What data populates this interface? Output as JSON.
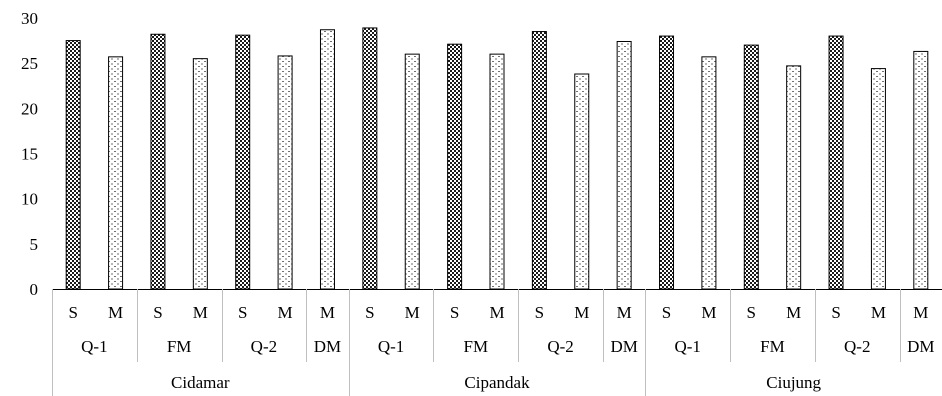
{
  "chart_data": {
    "type": "bar",
    "title": "",
    "xlabel": "",
    "ylabel": "",
    "ylim": [
      0,
      30
    ],
    "yticks": [
      0,
      5,
      10,
      15,
      20,
      25,
      30
    ],
    "grid": false,
    "legend": "none",
    "hatch_colors": {
      "S": "#1a1a1a",
      "M": "#707070"
    },
    "bars": [
      {
        "label": "S",
        "value": 27.5
      },
      {
        "label": "M",
        "value": 25.7
      },
      {
        "label": "S",
        "value": 28.2
      },
      {
        "label": "M",
        "value": 25.5
      },
      {
        "label": "S",
        "value": 28.1
      },
      {
        "label": "M",
        "value": 25.8
      },
      {
        "label": "M",
        "value": 28.7
      },
      {
        "label": "S",
        "value": 28.9
      },
      {
        "label": "M",
        "value": 26.0
      },
      {
        "label": "S",
        "value": 27.1
      },
      {
        "label": "M",
        "value": 26.0
      },
      {
        "label": "S",
        "value": 28.5
      },
      {
        "label": "M",
        "value": 23.8
      },
      {
        "label": "M",
        "value": 27.4
      },
      {
        "label": "S",
        "value": 28.0
      },
      {
        "label": "M",
        "value": 25.7
      },
      {
        "label": "S",
        "value": 27.0
      },
      {
        "label": "M",
        "value": 24.7
      },
      {
        "label": "S",
        "value": 28.0
      },
      {
        "label": "M",
        "value": 24.4
      },
      {
        "label": "M",
        "value": 26.3
      }
    ],
    "subgroups": [
      {
        "label": "Q-1",
        "size": 2
      },
      {
        "label": "FM",
        "size": 2
      },
      {
        "label": "Q-2",
        "size": 2
      },
      {
        "label": "DM",
        "size": 1
      },
      {
        "label": "Q-1",
        "size": 2
      },
      {
        "label": "FM",
        "size": 2
      },
      {
        "label": "Q-2",
        "size": 2
      },
      {
        "label": "DM",
        "size": 1
      },
      {
        "label": "Q-1",
        "size": 2
      },
      {
        "label": "FM",
        "size": 2
      },
      {
        "label": "Q-2",
        "size": 2
      },
      {
        "label": "DM",
        "size": 1
      }
    ],
    "groups": [
      {
        "label": "Cidamar",
        "size": 7
      },
      {
        "label": "Cipandak",
        "size": 7
      },
      {
        "label": "Ciujung",
        "size": 7
      }
    ]
  }
}
